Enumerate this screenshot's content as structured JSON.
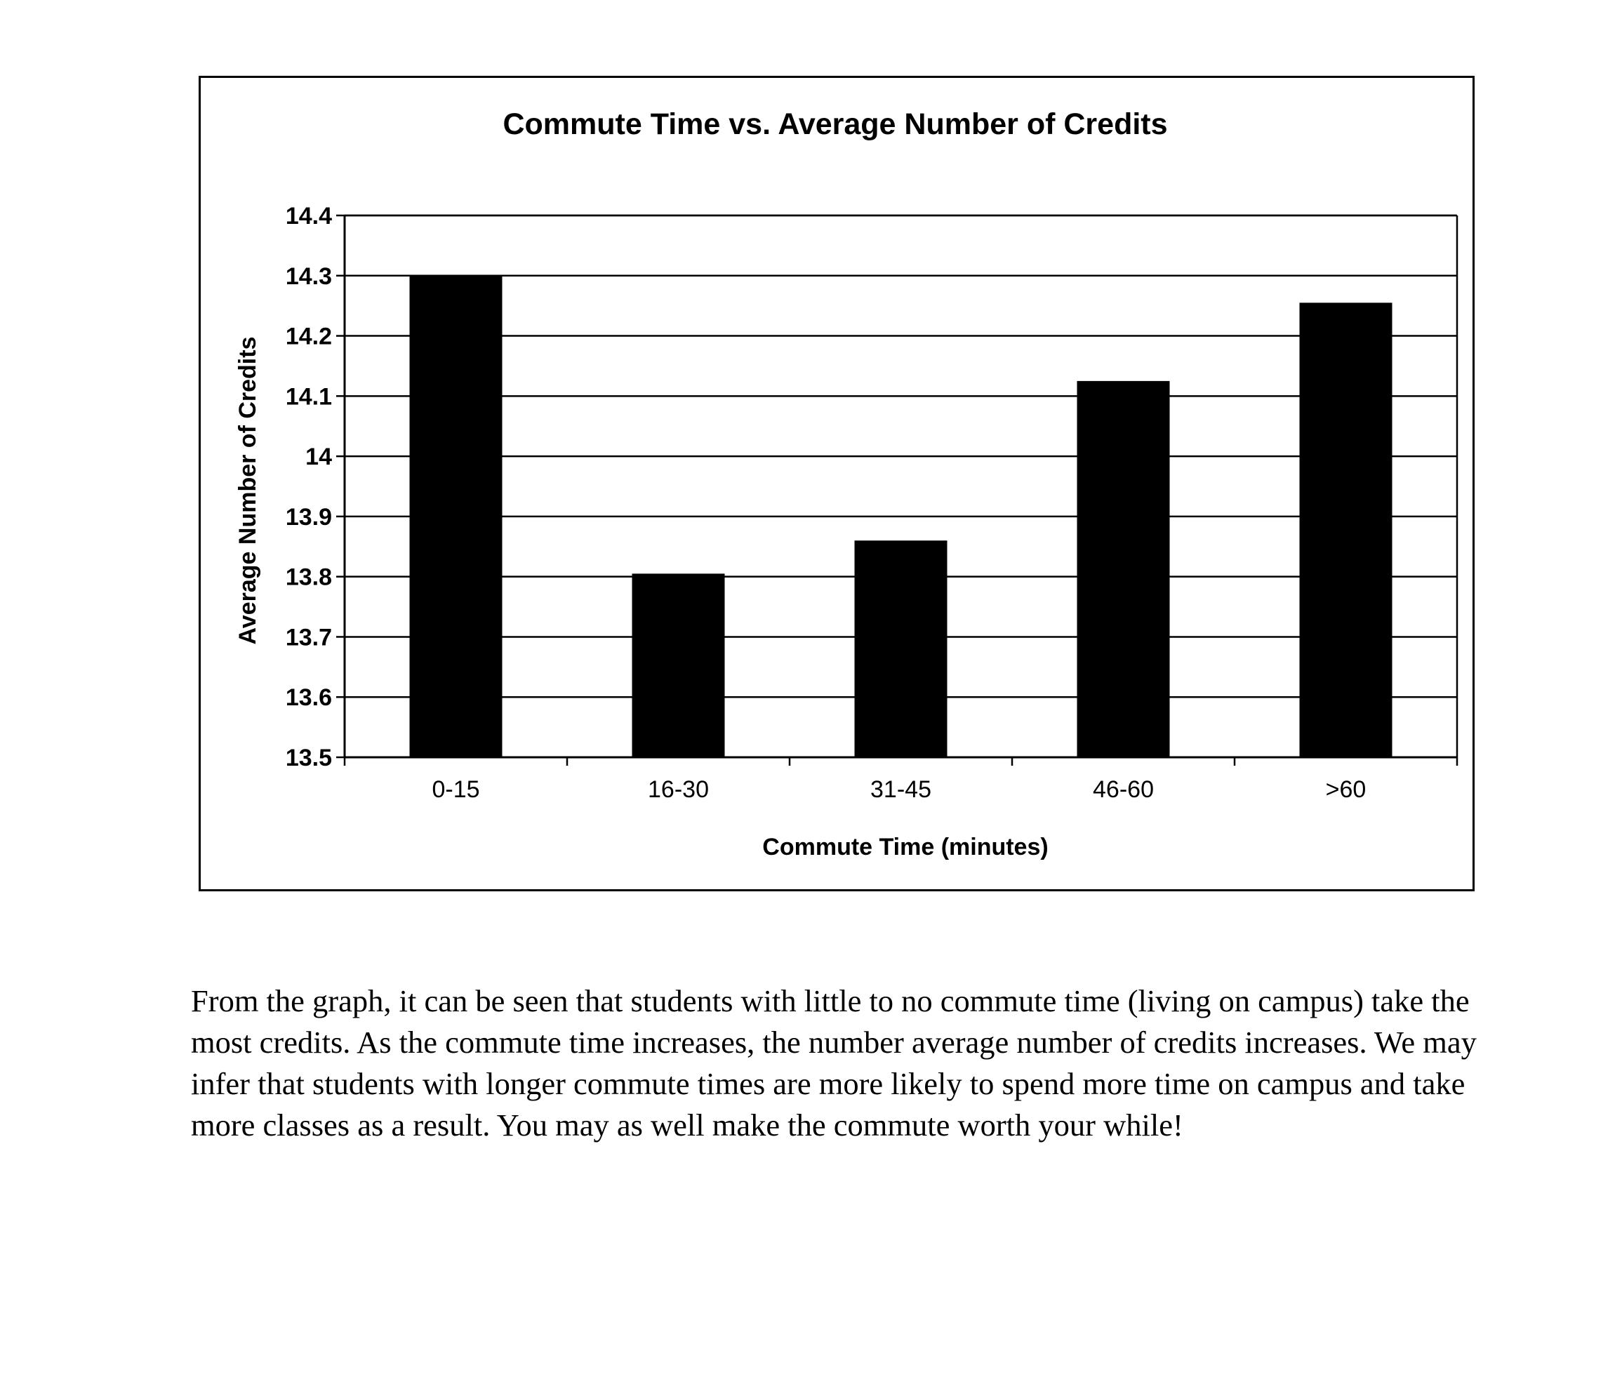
{
  "chart_data": {
    "type": "bar",
    "title": "Commute Time vs. Average Number of Credits",
    "xlabel": "Commute Time (minutes)",
    "ylabel": "Average Number of Credits",
    "categories": [
      "0-15",
      "16-30",
      "31-45",
      "46-60",
      ">60"
    ],
    "values": [
      14.3,
      13.805,
      13.86,
      14.125,
      14.255
    ],
    "ylim": [
      13.5,
      14.4
    ],
    "yticks": [
      "13.5",
      "13.6",
      "13.7",
      "13.8",
      "13.9",
      "14",
      "14.1",
      "14.2",
      "14.3",
      "14.4"
    ],
    "grid": true,
    "legend": "none",
    "bar_color": "#000000"
  },
  "caption": "From the graph, it can be seen that students with little to no commute time (living on campus) take the most credits.  As the commute time increases, the number average number of credits increases.  We may infer that students with longer commute times are more likely to spend more time on campus and take more classes as a result.  You may as well make the commute worth your while!"
}
